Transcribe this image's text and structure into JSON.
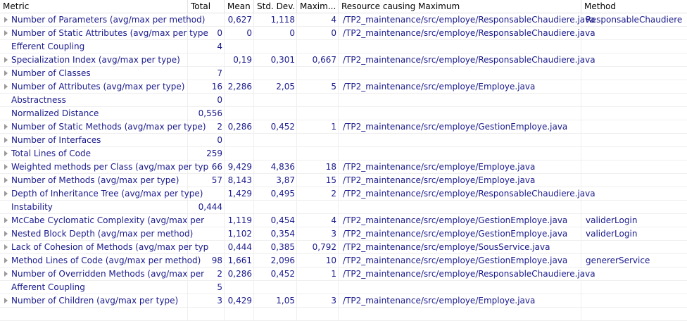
{
  "columns": {
    "metric": "Metric",
    "total": "Total",
    "mean": "Mean",
    "stddev": "Std. Dev.",
    "maximum": "Maxim...",
    "resource": "Resource causing Maximum",
    "method": "Method"
  },
  "rows": [
    {
      "metric": "Number of Parameters (avg/max per method)",
      "expandable": true,
      "total": "",
      "mean": "0,627",
      "stddev": "1,118",
      "max": "4",
      "resource": "/TP2_maintenance/src/employe/ResponsableChaudiere.java",
      "method": "ResponsableChaudiere"
    },
    {
      "metric": "Number of Static Attributes (avg/max per type",
      "expandable": true,
      "total": "0",
      "mean": "0",
      "stddev": "0",
      "max": "0",
      "resource": "/TP2_maintenance/src/employe/ResponsableChaudiere.java",
      "method": ""
    },
    {
      "metric": "Efferent Coupling",
      "expandable": false,
      "total": "4",
      "mean": "",
      "stddev": "",
      "max": "",
      "resource": "",
      "method": ""
    },
    {
      "metric": "Specialization Index (avg/max per type)",
      "expandable": true,
      "total": "",
      "mean": "0,19",
      "stddev": "0,301",
      "max": "0,667",
      "resource": "/TP2_maintenance/src/employe/ResponsableChaudiere.java",
      "method": ""
    },
    {
      "metric": "Number of Classes",
      "expandable": true,
      "total": "7",
      "mean": "",
      "stddev": "",
      "max": "",
      "resource": "",
      "method": ""
    },
    {
      "metric": "Number of Attributes (avg/max per type)",
      "expandable": true,
      "total": "16",
      "mean": "2,286",
      "stddev": "2,05",
      "max": "5",
      "resource": "/TP2_maintenance/src/employe/Employe.java",
      "method": ""
    },
    {
      "metric": "Abstractness",
      "expandable": false,
      "total": "0",
      "mean": "",
      "stddev": "",
      "max": "",
      "resource": "",
      "method": ""
    },
    {
      "metric": "Normalized Distance",
      "expandable": false,
      "total": "0,556",
      "mean": "",
      "stddev": "",
      "max": "",
      "resource": "",
      "method": ""
    },
    {
      "metric": "Number of Static Methods (avg/max per type)",
      "expandable": true,
      "total": "2",
      "mean": "0,286",
      "stddev": "0,452",
      "max": "1",
      "resource": "/TP2_maintenance/src/employe/GestionEmploye.java",
      "method": ""
    },
    {
      "metric": "Number of Interfaces",
      "expandable": true,
      "total": "0",
      "mean": "",
      "stddev": "",
      "max": "",
      "resource": "",
      "method": ""
    },
    {
      "metric": "Total Lines of Code",
      "expandable": true,
      "total": "259",
      "mean": "",
      "stddev": "",
      "max": "",
      "resource": "",
      "method": ""
    },
    {
      "metric": "Weighted methods per Class (avg/max per typ",
      "expandable": true,
      "total": "66",
      "mean": "9,429",
      "stddev": "4,836",
      "max": "18",
      "resource": "/TP2_maintenance/src/employe/Employe.java",
      "method": ""
    },
    {
      "metric": "Number of Methods (avg/max per type)",
      "expandable": true,
      "total": "57",
      "mean": "8,143",
      "stddev": "3,87",
      "max": "15",
      "resource": "/TP2_maintenance/src/employe/Employe.java",
      "method": ""
    },
    {
      "metric": "Depth of Inheritance Tree (avg/max per type)",
      "expandable": true,
      "total": "",
      "mean": "1,429",
      "stddev": "0,495",
      "max": "2",
      "resource": "/TP2_maintenance/src/employe/ResponsableChaudiere.java",
      "method": ""
    },
    {
      "metric": "Instability",
      "expandable": false,
      "total": "0,444",
      "mean": "",
      "stddev": "",
      "max": "",
      "resource": "",
      "method": ""
    },
    {
      "metric": "McCabe Cyclomatic Complexity (avg/max per",
      "expandable": true,
      "total": "",
      "mean": "1,119",
      "stddev": "0,454",
      "max": "4",
      "resource": "/TP2_maintenance/src/employe/GestionEmploye.java",
      "method": "validerLogin"
    },
    {
      "metric": "Nested Block Depth (avg/max per method)",
      "expandable": true,
      "total": "",
      "mean": "1,102",
      "stddev": "0,354",
      "max": "3",
      "resource": "/TP2_maintenance/src/employe/GestionEmploye.java",
      "method": "validerLogin"
    },
    {
      "metric": "Lack of Cohesion of Methods (avg/max per typ",
      "expandable": true,
      "total": "",
      "mean": "0,444",
      "stddev": "0,385",
      "max": "0,792",
      "resource": "/TP2_maintenance/src/employe/SousService.java",
      "method": ""
    },
    {
      "metric": "Method Lines of Code (avg/max per method)",
      "expandable": true,
      "total": "98",
      "mean": "1,661",
      "stddev": "2,096",
      "max": "10",
      "resource": "/TP2_maintenance/src/employe/GestionEmploye.java",
      "method": "genererService"
    },
    {
      "metric": "Number of Overridden Methods (avg/max per",
      "expandable": true,
      "total": "2",
      "mean": "0,286",
      "stddev": "0,452",
      "max": "1",
      "resource": "/TP2_maintenance/src/employe/ResponsableChaudiere.java",
      "method": ""
    },
    {
      "metric": "Afferent Coupling",
      "expandable": false,
      "total": "5",
      "mean": "",
      "stddev": "",
      "max": "",
      "resource": "",
      "method": ""
    },
    {
      "metric": "Number of Children (avg/max per type)",
      "expandable": true,
      "total": "3",
      "mean": "0,429",
      "stddev": "1,05",
      "max": "3",
      "resource": "/TP2_maintenance/src/employe/Employe.java",
      "method": ""
    },
    {
      "metric": "",
      "expandable": false,
      "total": "",
      "mean": "",
      "stddev": "",
      "max": "",
      "resource": "",
      "method": ""
    }
  ],
  "icons": {
    "expand": "chevron-right-icon"
  }
}
